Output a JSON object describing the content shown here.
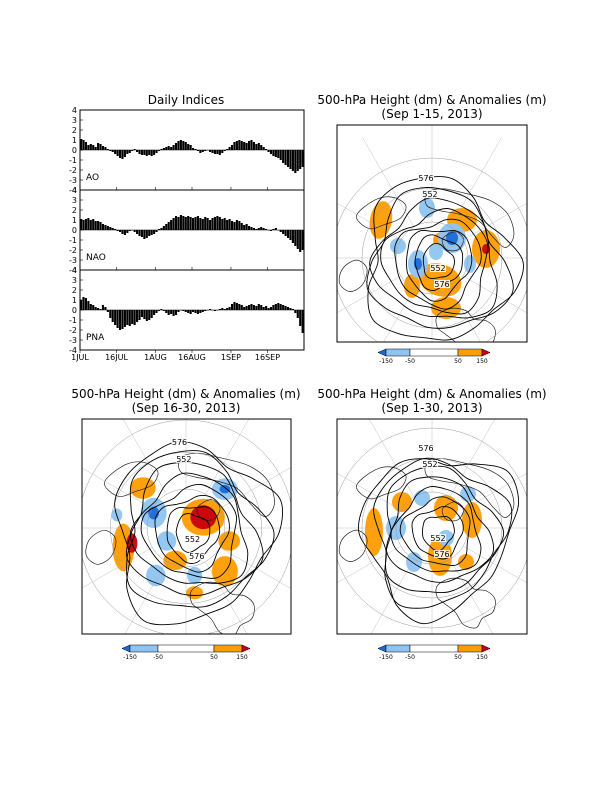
{
  "chart_data": [
    {
      "type": "bar",
      "title": "Daily Indices",
      "x_tick_labels": [
        "1JUL",
        "16JUL",
        "1AUG",
        "16AUG",
        "1SEP",
        "16SEP"
      ],
      "ylim": [
        -4,
        4
      ],
      "y_tick_labels": [
        "4",
        "3",
        "2",
        "1",
        "0",
        "-1",
        "-2",
        "-3",
        "-4"
      ],
      "x_range": [
        "2013-07-01",
        "2013-09-30"
      ],
      "panels": [
        {
          "name": "AO",
          "values": [
            1.1,
            1.0,
            0.8,
            0.5,
            0.6,
            0.5,
            0.3,
            0.7,
            0.6,
            0.4,
            0.3,
            0.1,
            -0.1,
            -0.2,
            -0.4,
            -0.6,
            -0.8,
            -0.9,
            -0.7,
            -0.4,
            -0.3,
            -0.1,
            0.1,
            -0.2,
            -0.4,
            -0.5,
            -0.5,
            -0.6,
            -0.5,
            -0.6,
            -0.5,
            -0.3,
            -0.1,
            0.1,
            0.2,
            0.3,
            0.4,
            0.3,
            0.5,
            0.7,
            0.9,
            1.0,
            0.9,
            0.8,
            0.6,
            0.5,
            0.2,
            0.1,
            -0.1,
            -0.3,
            -0.2,
            -0.1,
            0.0,
            -0.2,
            -0.3,
            -0.4,
            -0.4,
            -0.5,
            -0.3,
            -0.1,
            0.1,
            0.3,
            0.5,
            0.8,
            0.9,
            1.0,
            0.9,
            0.8,
            0.7,
            0.9,
            1.0,
            0.8,
            0.6,
            0.7,
            0.5,
            0.3,
            0.1,
            -0.2,
            -0.4,
            -0.6,
            -0.7,
            -0.8,
            -1.0,
            -1.3,
            -1.5,
            -1.7,
            -1.9,
            -2.1,
            -2.3,
            -2.1,
            -1.9,
            -1.7
          ]
        },
        {
          "name": "NAO",
          "values": [
            1.1,
            1.0,
            1.1,
            1.2,
            1.0,
            1.1,
            0.9,
            0.9,
            0.8,
            0.6,
            0.5,
            0.4,
            0.3,
            0.2,
            0.1,
            -0.1,
            -0.2,
            -0.4,
            -0.5,
            -0.3,
            -0.1,
            0.0,
            -0.2,
            -0.4,
            -0.6,
            -0.7,
            -0.9,
            -0.8,
            -0.6,
            -0.5,
            -0.4,
            -0.2,
            0.1,
            0.2,
            0.4,
            0.6,
            0.8,
            1.0,
            1.2,
            1.4,
            1.3,
            1.5,
            1.4,
            1.3,
            1.4,
            1.3,
            1.2,
            1.3,
            1.4,
            1.2,
            1.1,
            1.3,
            1.2,
            1.0,
            1.2,
            1.3,
            1.4,
            1.3,
            1.1,
            1.2,
            1.0,
            1.1,
            0.9,
            0.8,
            1.0,
            0.9,
            0.7,
            0.5,
            0.6,
            0.4,
            0.3,
            0.2,
            0.1,
            0.2,
            0.3,
            0.2,
            0.1,
            0.0,
            -0.1,
            0.1,
            0.2,
            0.0,
            -0.2,
            -0.4,
            -0.6,
            -0.8,
            -1.0,
            -1.3,
            -1.6,
            -1.9,
            -2.2,
            -2.0
          ]
        },
        {
          "name": "PNA",
          "values": [
            1.0,
            1.3,
            1.2,
            0.9,
            0.6,
            0.5,
            0.3,
            0.2,
            0.1,
            0.5,
            0.3,
            -0.2,
            -0.8,
            -1.2,
            -1.5,
            -1.8,
            -2.0,
            -1.9,
            -1.7,
            -1.5,
            -1.6,
            -1.4,
            -1.5,
            -1.2,
            -1.0,
            -0.7,
            -0.9,
            -1.1,
            -1.0,
            -0.8,
            -0.5,
            -0.3,
            -0.1,
            0.1,
            -0.1,
            -0.3,
            -0.5,
            -0.4,
            -0.6,
            -0.5,
            -0.2,
            0.0,
            -0.1,
            -0.2,
            -0.3,
            -0.4,
            -0.2,
            -0.3,
            -0.4,
            -0.3,
            -0.2,
            -0.1,
            0.0,
            0.1,
            0.0,
            -0.1,
            0.0,
            0.1,
            0.2,
            0.1,
            0.2,
            0.3,
            0.6,
            0.8,
            0.7,
            0.6,
            0.5,
            0.3,
            0.4,
            0.5,
            0.6,
            0.5,
            0.4,
            0.6,
            0.5,
            0.3,
            0.4,
            0.2,
            0.3,
            0.5,
            0.6,
            0.7,
            0.6,
            0.5,
            0.4,
            0.3,
            0.2,
            0.1,
            -0.3,
            -0.8,
            -1.6,
            -2.3
          ]
        }
      ]
    },
    {
      "type": "heatmap",
      "title": "500-hPa Height (dm) & Anomalies (m)",
      "subtitle": "(Sep 1-15, 2013)",
      "contour_labels": [
        "576",
        "552",
        "552",
        "576"
      ],
      "colorbar": {
        "ticks": [
          "-150",
          "-50",
          "50",
          "150"
        ],
        "colors": [
          "#1a6bd6",
          "#8fc4f2",
          "#ffffff",
          "#ff9c00",
          "#c8000f"
        ]
      }
    },
    {
      "type": "heatmap",
      "title": "500-hPa Height (dm) & Anomalies (m)",
      "subtitle": "(Sep 16-30, 2013)",
      "contour_labels": [
        "576",
        "552",
        "552",
        "576"
      ],
      "colorbar": {
        "ticks": [
          "-150",
          "-50",
          "50",
          "150"
        ],
        "colors": [
          "#1a6bd6",
          "#8fc4f2",
          "#ffffff",
          "#ff9c00",
          "#c8000f"
        ]
      }
    },
    {
      "type": "heatmap",
      "title": "500-hPa Height (dm) & Anomalies (m)",
      "subtitle": "(Sep 1-30, 2013)",
      "contour_labels": [
        "576",
        "552",
        "552",
        "576"
      ],
      "colorbar": {
        "ticks": [
          "-150",
          "-50",
          "50",
          "150"
        ],
        "colors": [
          "#1a6bd6",
          "#8fc4f2",
          "#ffffff",
          "#ff9c00",
          "#c8000f"
        ]
      }
    }
  ]
}
